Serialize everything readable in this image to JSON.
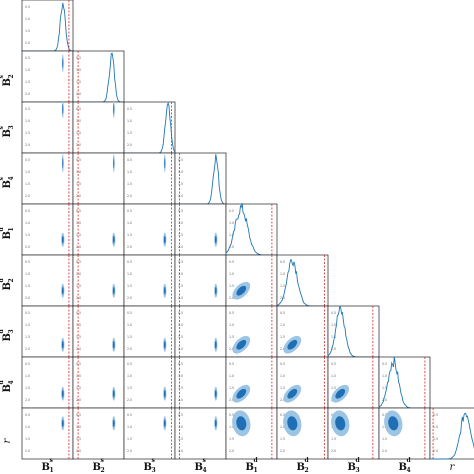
{
  "figure": {
    "type": "corner-plot"
  },
  "chart_data": {
    "type": "corner",
    "parameters": [
      {
        "base": "B",
        "sup": "s",
        "sub": "1"
      },
      {
        "base": "B",
        "sup": "s",
        "sub": "2"
      },
      {
        "base": "B",
        "sup": "s",
        "sub": "3"
      },
      {
        "base": "B",
        "sup": "s",
        "sub": "4"
      },
      {
        "base": "B",
        "sup": "d",
        "sub": "1"
      },
      {
        "base": "B",
        "sup": "d",
        "sub": "2"
      },
      {
        "base": "B",
        "sup": "d",
        "sub": "3"
      },
      {
        "base": "B",
        "sup": "d",
        "sub": "4"
      },
      {
        "base": "r",
        "sup": "",
        "sub": ""
      }
    ],
    "truth_line_color": "#d62728",
    "contour_colors": {
      "inner": "#1f6fb5",
      "outer": "#9cc4e4"
    },
    "histogram_color": "#1f77b4",
    "grid": false,
    "diagonal_histograms": [
      {
        "parameter": "B1s",
        "peak": 0.8,
        "width": 0.05
      },
      {
        "parameter": "B2s",
        "peak": 0.76,
        "width": 0.05
      },
      {
        "parameter": "B3s",
        "peak": 0.86,
        "width": 0.05
      },
      {
        "parameter": "B4s",
        "peak": 0.8,
        "width": 0.05
      },
      {
        "parameter": "B1d",
        "peak": 0.3,
        "width": 0.12
      },
      {
        "parameter": "B2d",
        "peak": 0.3,
        "width": 0.1
      },
      {
        "parameter": "B3d",
        "peak": 0.24,
        "width": 0.09
      },
      {
        "parameter": "B4d",
        "peak": 0.28,
        "width": 0.1
      },
      {
        "parameter": "r",
        "peak": 0.7,
        "width": 0.1
      }
    ],
    "truth_values": [
      0.92,
      0.1,
      0.93,
      0.09,
      0.9,
      0.93,
      0.88,
      0.9,
      0.06
    ],
    "tick_labels": [
      "0.5",
      "1.0",
      "1.5",
      "2.0"
    ]
  }
}
